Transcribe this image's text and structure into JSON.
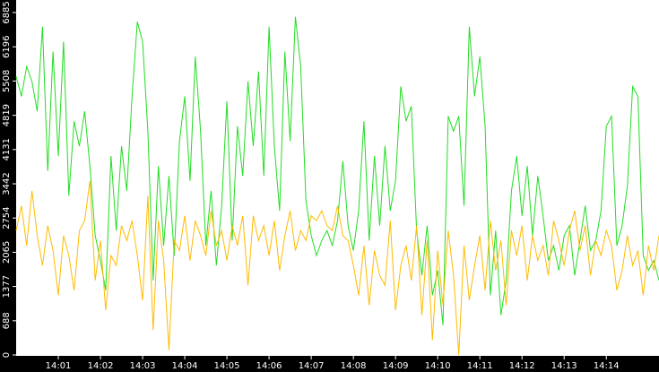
{
  "chart_data": {
    "type": "line",
    "x": [
      0,
      0.125,
      0.25,
      0.375,
      0.5,
      0.625,
      0.75,
      0.875,
      1,
      1.125,
      1.25,
      1.375,
      1.5,
      1.625,
      1.75,
      1.875,
      2,
      2.125,
      2.25,
      2.375,
      2.5,
      2.625,
      2.75,
      2.875,
      3,
      3.125,
      3.25,
      3.375,
      3.5,
      3.625,
      3.75,
      3.875,
      4,
      4.125,
      4.25,
      4.375,
      4.5,
      4.625,
      4.75,
      4.875,
      5,
      5.125,
      5.25,
      5.375,
      5.5,
      5.625,
      5.75,
      5.875,
      6,
      6.125,
      6.25,
      6.375,
      6.5,
      6.625,
      6.75,
      6.875,
      7,
      7.125,
      7.25,
      7.375,
      7.5,
      7.625,
      7.75,
      7.875,
      8,
      8.125,
      8.25,
      8.375,
      8.5,
      8.625,
      8.75,
      8.875,
      9,
      9.125,
      9.25,
      9.375,
      9.5,
      9.625,
      9.75,
      9.875,
      10,
      10.125,
      10.25,
      10.375,
      10.5,
      10.625,
      10.75,
      10.875,
      11,
      11.125,
      11.25,
      11.375,
      11.5,
      11.625,
      11.75,
      11.875,
      12,
      12.125,
      12.25,
      12.375,
      12.5,
      12.625,
      12.75,
      12.875,
      13,
      13.125,
      13.25,
      13.375,
      13.5,
      13.625,
      13.75,
      13.875,
      14,
      14.125,
      14.25,
      14.375,
      14.5,
      14.625,
      14.75,
      14.875,
      15,
      15.125,
      15.25
    ],
    "series": [
      {
        "color": "#22dd22",
        "values": [
          5600,
          5200,
          5800,
          5500,
          4900,
          6600,
          3700,
          6100,
          4000,
          6300,
          3200,
          4700,
          4200,
          4900,
          3800,
          2400,
          1900,
          1300,
          4000,
          2500,
          4200,
          3300,
          5200,
          6700,
          6300,
          4500,
          1500,
          3800,
          2200,
          3600,
          2000,
          4300,
          5200,
          3500,
          6000,
          4500,
          2200,
          3300,
          1800,
          3000,
          5100,
          2300,
          4600,
          3600,
          5500,
          4200,
          5700,
          3600,
          6600,
          4200,
          2900,
          6100,
          4300,
          6800,
          5800,
          3100,
          2400,
          2000,
          2300,
          2500,
          2200,
          2700,
          3900,
          2600,
          2100,
          2900,
          4700,
          2300,
          4000,
          2600,
          4200,
          2900,
          3500,
          5400,
          4700,
          5000,
          2500,
          1600,
          2600,
          1200,
          1700,
          600,
          4800,
          4500,
          4800,
          3000,
          6600,
          5200,
          6000,
          4600,
          1200,
          2500,
          800,
          1500,
          3300,
          4000,
          2800,
          3800,
          2400,
          3600,
          2800,
          1900,
          2200,
          1700,
          2400,
          2600,
          1600,
          2300,
          3000,
          2100,
          2300,
          2900,
          4600,
          4800,
          2200,
          2600,
          3400,
          5400,
          5200,
          2000,
          1700,
          1900,
          1500
        ]
      },
      {
        "color": "#ffbb00",
        "values": [
          2500,
          3000,
          2200,
          3300,
          2400,
          1800,
          2600,
          2100,
          1200,
          2400,
          2000,
          1300,
          2500,
          2700,
          3500,
          1500,
          2300,
          900,
          2000,
          1800,
          2600,
          2300,
          2700,
          2000,
          1100,
          3200,
          500,
          2700,
          1900,
          100,
          2300,
          2100,
          2800,
          1900,
          2700,
          2400,
          2000,
          2900,
          2200,
          2500,
          1900,
          2600,
          2200,
          2800,
          1400,
          2800,
          2300,
          2600,
          2000,
          2700,
          1700,
          2400,
          2900,
          2100,
          2500,
          2300,
          2800,
          2700,
          2900,
          2600,
          2500,
          3000,
          2400,
          2300,
          1800,
          1200,
          2200,
          1000,
          2100,
          1600,
          1400,
          2700,
          900,
          1800,
          2200,
          1500,
          2600,
          800,
          2300,
          300,
          2100,
          1000,
          2500,
          1600,
          0,
          2200,
          1100,
          1800,
          2400,
          1300,
          2700,
          1700,
          2300,
          1000,
          2500,
          2000,
          2600,
          1500,
          2400,
          1900,
          2200,
          1600,
          2700,
          2300,
          1800,
          2500,
          2900,
          2100,
          2600,
          1600,
          2300,
          2000,
          2500,
          2200,
          1300,
          1700,
          2400,
          1800,
          2100,
          1200,
          2200,
          1700,
          2400
        ]
      }
    ],
    "xlim": [
      0,
      15.25
    ],
    "xticks": [
      {
        "value": 1,
        "label": "14:01"
      },
      {
        "value": 2,
        "label": "14:02"
      },
      {
        "value": 3,
        "label": "14:03"
      },
      {
        "value": 4,
        "label": "14:04"
      },
      {
        "value": 5,
        "label": "14:05"
      },
      {
        "value": 6,
        "label": "14:06"
      },
      {
        "value": 7,
        "label": "14:07"
      },
      {
        "value": 8,
        "label": "14:08"
      },
      {
        "value": 9,
        "label": "14:09"
      },
      {
        "value": 10,
        "label": "14:10"
      },
      {
        "value": 11,
        "label": "14:11"
      },
      {
        "value": 12,
        "label": "14:12"
      },
      {
        "value": 13,
        "label": "14:13"
      },
      {
        "value": 14,
        "label": "14:14"
      }
    ],
    "ylim": [
      0,
      6885
    ],
    "yticks": [
      0,
      688,
      1377,
      2065,
      2754,
      3442,
      4131,
      4819,
      5508,
      6196,
      6885
    ]
  }
}
